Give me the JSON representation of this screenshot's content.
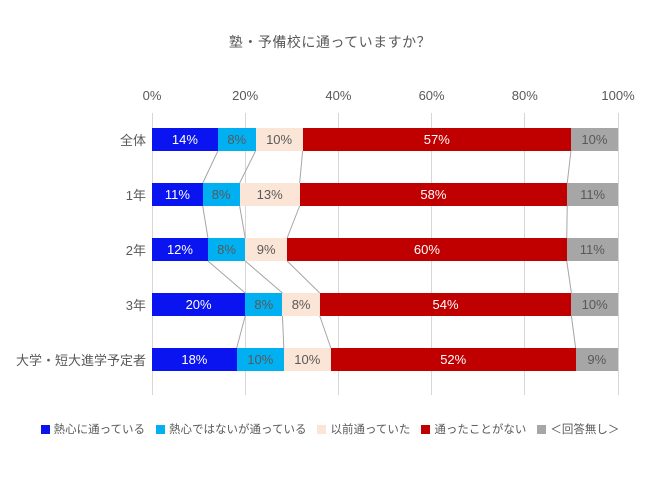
{
  "title": "塾・予備校に通っていますか？",
  "chart_data": {
    "type": "bar",
    "subtype": "stacked-100-horizontal",
    "title": "塾・予備校に通っていますか？",
    "categories": [
      "全体",
      "1年",
      "2年",
      "3年",
      "大学・短大進学予定者"
    ],
    "series": [
      {
        "name": "熱心に通っている",
        "color": "#0a14f0",
        "label_color": "#ffffff",
        "values": [
          14,
          11,
          12,
          20,
          18
        ]
      },
      {
        "name": "熱心ではないが通っている",
        "color": "#00b0f0",
        "label_color": "#595959",
        "values": [
          8,
          8,
          8,
          8,
          10
        ]
      },
      {
        "name": "以前通っていた",
        "color": "#fbe5d6",
        "label_color": "#595959",
        "values": [
          10,
          13,
          9,
          8,
          10
        ]
      },
      {
        "name": "通ったことがない",
        "color": "#c00000",
        "label_color": "#ffffff",
        "values": [
          57,
          58,
          60,
          54,
          52
        ]
      },
      {
        "name": "＜回答無し＞",
        "color": "#a6a6a6",
        "label_color": "#595959",
        "values": [
          10,
          11,
          11,
          10,
          9
        ]
      }
    ],
    "x_ticks": [
      "0%",
      "20%",
      "40%",
      "60%",
      "80%",
      "100%"
    ],
    "xlim": [
      0,
      100
    ],
    "value_suffix": "%",
    "grid": true,
    "legend_position": "bottom",
    "gridline_color": "#d6d6d6",
    "connector_line_color": "#a6a6a6",
    "axis_text_color": "#595959"
  }
}
